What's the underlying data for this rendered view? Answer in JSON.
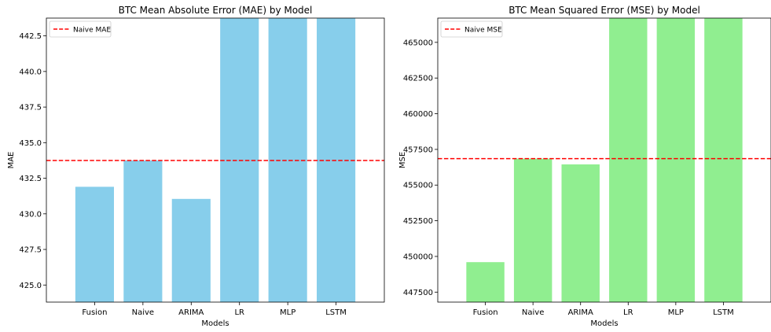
{
  "chart_data": [
    {
      "type": "bar",
      "title": "BTC Mean Absolute Error (MAE) by Model",
      "xlabel": "Models",
      "ylabel": "MAE",
      "categories": [
        "Fusion",
        "Naive",
        "ARIMA",
        "LR",
        "MLP",
        "LSTM"
      ],
      "values": [
        431.9,
        433.75,
        431.05,
        443.75,
        443.75,
        443.75
      ],
      "bars_extend_beyond_ylim": [
        false,
        false,
        false,
        true,
        true,
        true
      ],
      "bar_color": "#87ceeb",
      "ylim": [
        423.8,
        443.75
      ],
      "yticks": [
        425.0,
        427.5,
        430.0,
        432.5,
        435.0,
        437.5,
        440.0,
        442.5
      ],
      "ytick_labels": [
        "425.0",
        "427.5",
        "430.0",
        "432.5",
        "435.0",
        "437.5",
        "440.0",
        "442.5"
      ],
      "reference_line": {
        "label": "Naive MAE",
        "value": 433.75,
        "color": "#ff0000",
        "style": "dashed"
      },
      "legend": {
        "entries": [
          "Naive MAE"
        ],
        "placement": "top-left"
      },
      "grid": false
    },
    {
      "type": "bar",
      "title": "BTC Mean Squared Error (MSE) by Model",
      "xlabel": "Models",
      "ylabel": "MSE",
      "categories": [
        "Fusion",
        "Naive",
        "ARIMA",
        "LR",
        "MLP",
        "LSTM"
      ],
      "values": [
        449600,
        456850,
        456450,
        466700,
        466700,
        466700
      ],
      "bars_extend_beyond_ylim": [
        false,
        false,
        false,
        true,
        true,
        true
      ],
      "bar_color": "#90ee90",
      "ylim": [
        446800,
        466700
      ],
      "yticks": [
        447500,
        450000,
        452500,
        455000,
        457500,
        460000,
        462500,
        465000
      ],
      "ytick_labels": [
        "447500",
        "450000",
        "452500",
        "455000",
        "457500",
        "460000",
        "462500",
        "465000"
      ],
      "reference_line": {
        "label": "Naive MSE",
        "value": 456850,
        "color": "#ff0000",
        "style": "dashed"
      },
      "legend": {
        "entries": [
          "Naive MSE"
        ],
        "placement": "top-left"
      },
      "grid": false
    }
  ]
}
